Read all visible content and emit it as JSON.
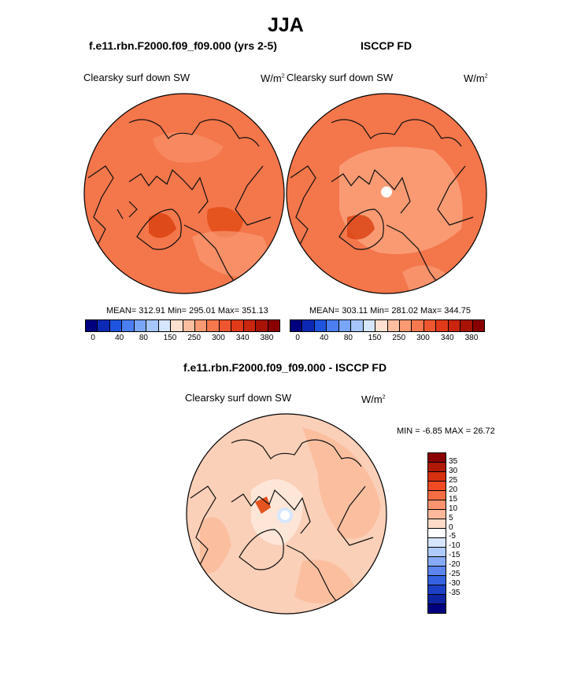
{
  "title": "JJA",
  "left_panel": {
    "heading": "f.e11.rbn.F2000.f09_f09.000 (yrs 2-5)",
    "variable": "Clearsky surf down SW",
    "units": "W/m",
    "units_sup": "2",
    "stats": "MEAN= 312.91  Min= 295.01  Max= 351.13"
  },
  "right_panel": {
    "heading": "ISCCP FD",
    "variable": "Clearsky surf down SW",
    "units": "W/m",
    "units_sup": "2",
    "stats": "MEAN= 303.11  Min= 281.02  Max= 344.75"
  },
  "abs_colorbar": {
    "colors": [
      "#00007f",
      "#0c29b6",
      "#1f55de",
      "#4b7ef0",
      "#7aa6f8",
      "#a6c6fb",
      "#d6e6fd",
      "#fde0cf",
      "#fbbfa0",
      "#f99a73",
      "#f5784e",
      "#ee5630",
      "#e13a1a",
      "#c9260d",
      "#a81305",
      "#8a0000"
    ],
    "ticks": [
      "0",
      "40",
      "80",
      "150",
      "250",
      "300",
      "340",
      "380"
    ]
  },
  "diff_panel": {
    "heading": "f.e11.rbn.F2000.f09_f09.000 - ISCCP FD",
    "variable": "Clearsky surf down SW",
    "units": "W/m",
    "units_sup": "2",
    "stats": "MIN =  -6.85 MAX =  26.72"
  },
  "diff_colorbar": {
    "colors": [
      "#8a0000",
      "#b01a05",
      "#d6300f",
      "#f04b22",
      "#f76d43",
      "#fa9470",
      "#fcb99b",
      "#fddbc8",
      "#ffffff",
      "#d7e7fd",
      "#aecbfb",
      "#86aaf6",
      "#5c85ee",
      "#3662e0",
      "#1c40c6",
      "#0f24a3",
      "#00007f"
    ],
    "ticks": [
      "35",
      "30",
      "25",
      "20",
      "15",
      "10",
      "5",
      "0",
      "-5",
      "-10",
      "-15",
      "-20",
      "-25",
      "-30",
      "-35"
    ]
  },
  "colors": {
    "map_base": "#f4764b",
    "map_light": "#f99a73",
    "map_dark": "#d9400f",
    "diff_base": "#fbd0b8",
    "diff_mid": "#fbbfa0",
    "diff_pale": "#fde6d8"
  }
}
